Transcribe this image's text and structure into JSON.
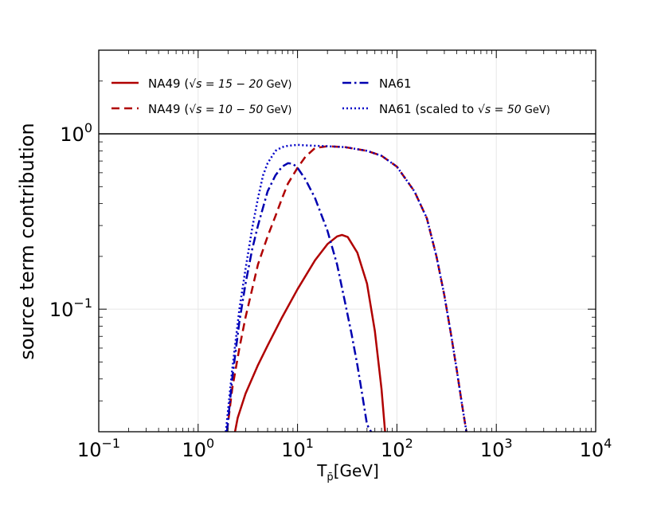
{
  "chart_data": {
    "type": "line",
    "title": "",
    "xlabel": "T",
    "xlabel_sub": "p̄",
    "xlabel_unit": "[GeV]",
    "ylabel": "source term contribution",
    "xscale": "log",
    "yscale": "log",
    "xlim": [
      0.1,
      10000
    ],
    "ylim": [
      0.02,
      3
    ],
    "reference_line": {
      "y": 1.0,
      "color": "#000000"
    },
    "x_ticks": [
      {
        "value": 0.1,
        "base": "10",
        "exp": "−1"
      },
      {
        "value": 1,
        "base": "10",
        "exp": "0"
      },
      {
        "value": 10,
        "base": "10",
        "exp": "1"
      },
      {
        "value": 100,
        "base": "10",
        "exp": "2"
      },
      {
        "value": 1000,
        "base": "10",
        "exp": "3"
      },
      {
        "value": 10000,
        "base": "10",
        "exp": "4"
      }
    ],
    "y_ticks": [
      {
        "value": 0.1,
        "base": "10",
        "exp": "−1"
      },
      {
        "value": 1,
        "base": "10",
        "exp": "0"
      }
    ],
    "legend": {
      "placement": "top, inside",
      "entries": [
        {
          "series": 0,
          "pre": "NA49 (",
          "math": "√s = 15 − 20",
          "post": "  GeV)"
        },
        {
          "series": 1,
          "pre": "NA49 (",
          "math": "√s = 10 − 50",
          "post": "  GeV)"
        },
        {
          "series": 2,
          "pre": "NA61",
          "math": "",
          "post": ""
        },
        {
          "series": 3,
          "pre": "NA61 (scaled to ",
          "math": "√s = 50",
          "post": "  GeV)"
        }
      ]
    },
    "series": [
      {
        "name": "NA49 (√s=15−20 GeV)",
        "color": "#b00000",
        "style": "solid",
        "x": [
          2.35,
          2.5,
          3,
          4,
          5,
          7,
          10,
          15,
          20,
          25,
          28,
          32,
          40,
          50,
          60,
          70,
          76
        ],
        "y": [
          0.02,
          0.024,
          0.033,
          0.048,
          0.062,
          0.09,
          0.13,
          0.19,
          0.235,
          0.26,
          0.265,
          0.258,
          0.21,
          0.14,
          0.075,
          0.035,
          0.02
        ]
      },
      {
        "name": "NA49 (√s=10−50 GeV)",
        "color": "#b00000",
        "style": "dashed",
        "x": [
          1.95,
          2.2,
          2.6,
          3,
          4,
          5,
          6,
          7,
          8,
          10,
          12,
          15,
          20,
          30,
          50,
          70,
          100,
          150,
          200,
          250,
          300,
          350,
          400,
          450,
          500
        ],
        "y": [
          0.02,
          0.035,
          0.06,
          0.09,
          0.18,
          0.26,
          0.34,
          0.43,
          0.52,
          0.64,
          0.74,
          0.83,
          0.85,
          0.84,
          0.8,
          0.75,
          0.65,
          0.47,
          0.33,
          0.2,
          0.12,
          0.072,
          0.045,
          0.029,
          0.02
        ]
      },
      {
        "name": "NA61",
        "color": "#0000b0",
        "style": "dashdot",
        "x": [
          1.95,
          2.2,
          2.6,
          3,
          3.5,
          4,
          5,
          6,
          7,
          8,
          9,
          10,
          12,
          15,
          20,
          25,
          30,
          35,
          40,
          45,
          50,
          55
        ],
        "y": [
          0.02,
          0.04,
          0.085,
          0.14,
          0.22,
          0.3,
          0.47,
          0.58,
          0.65,
          0.68,
          0.675,
          0.64,
          0.55,
          0.43,
          0.28,
          0.18,
          0.11,
          0.072,
          0.048,
          0.032,
          0.022,
          0.02
        ]
      },
      {
        "name": "NA61 (scaled to √s=50 GeV)",
        "color": "#0000c8",
        "style": "dotted",
        "x": [
          1.9,
          2.2,
          2.6,
          3,
          3.5,
          4,
          4.5,
          5,
          6,
          7,
          8,
          10,
          12,
          15,
          20,
          30,
          50,
          70,
          100,
          150,
          200,
          250,
          300,
          350,
          400,
          450,
          500
        ],
        "y": [
          0.02,
          0.045,
          0.1,
          0.17,
          0.29,
          0.43,
          0.58,
          0.68,
          0.8,
          0.84,
          0.855,
          0.865,
          0.86,
          0.855,
          0.85,
          0.84,
          0.8,
          0.75,
          0.65,
          0.47,
          0.33,
          0.2,
          0.12,
          0.072,
          0.045,
          0.029,
          0.02
        ]
      }
    ]
  }
}
